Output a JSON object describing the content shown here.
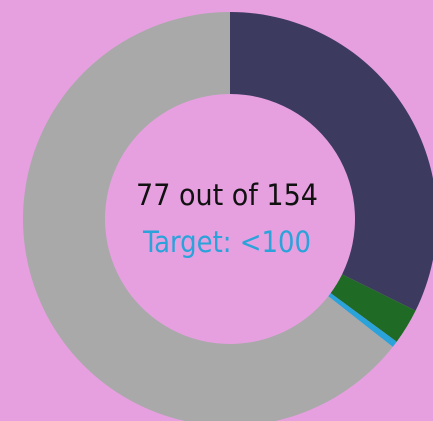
{
  "chart_data": {
    "type": "donut",
    "categories": [
      null,
      null,
      null,
      null
    ],
    "values": [
      32.3,
      2.8,
      0.5,
      64.4
    ],
    "colors": [
      "#3d3a60",
      "#1f6a24",
      "#2aa2da",
      "#a9a9a9"
    ],
    "annotations": [
      "77 out of 154",
      "Target: <100"
    ]
  }
}
